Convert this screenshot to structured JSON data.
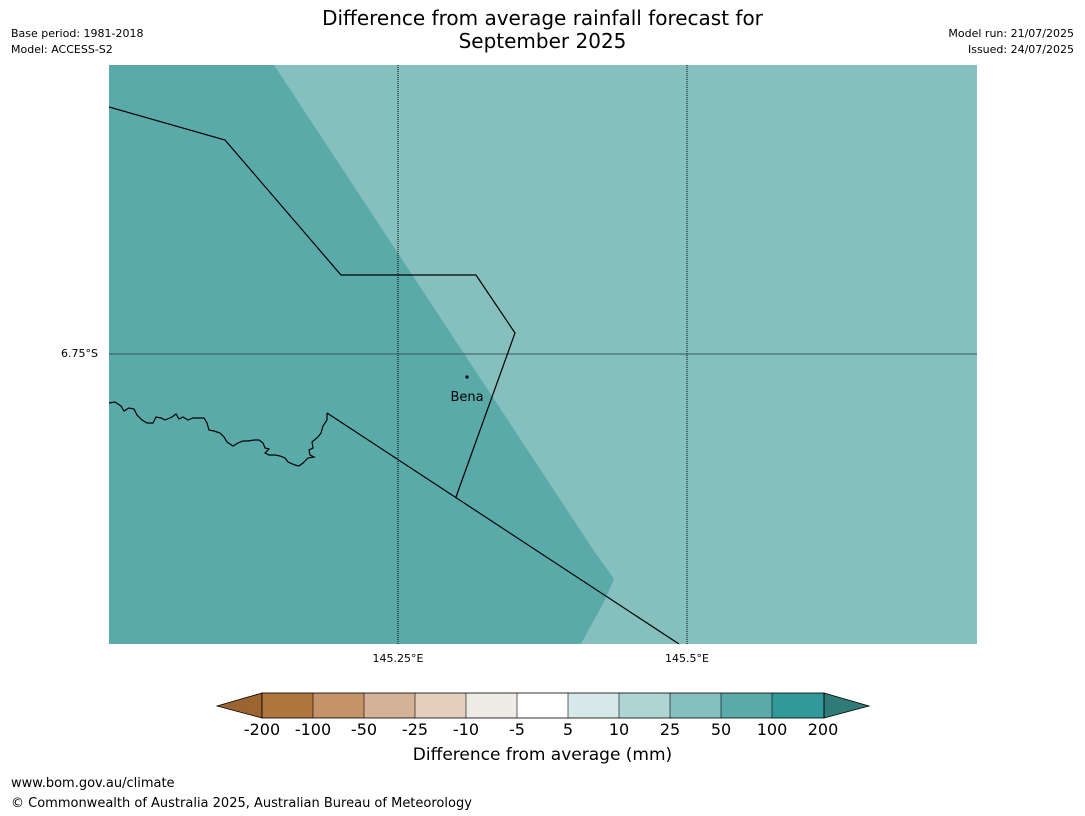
{
  "header": {
    "title_line1": "Difference from average rainfall forecast for",
    "title_line2": "September 2025",
    "base_period": "Base period: 1981-2018",
    "model": "Model: ACCESS-S2",
    "model_run": "Model run: 21/07/2025",
    "issued": "Issued: 24/07/2025"
  },
  "map": {
    "place_label": "Bena",
    "lat_label": "6.75°S",
    "lon_labels": [
      "145.25°E",
      "145.5°E"
    ],
    "region_colors": {
      "west": "#5aaaaa",
      "east": "#85c0bf"
    }
  },
  "colorbar": {
    "label": "Difference from average (mm)",
    "ticks": [
      "-200",
      "-100",
      "-50",
      "-25",
      "-10",
      "-5",
      "5",
      "10",
      "25",
      "50",
      "100",
      "200"
    ],
    "colors": [
      "#9b6531",
      "#ae753c",
      "#c49368",
      "#d4b295",
      "#e4cfbc",
      "#efebe7",
      "#ffffff",
      "#d6e9e8",
      "#aed5d4",
      "#85c0bf",
      "#5aaaaa",
      "#31999a",
      "#2e7b78"
    ]
  },
  "footer": {
    "website": "www.bom.gov.au/climate",
    "copyright": "© Commonwealth of Australia 2025, Australian Bureau of Meteorology"
  }
}
